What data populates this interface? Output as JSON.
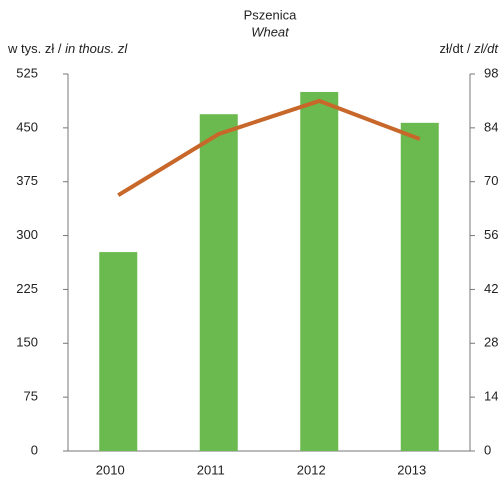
{
  "chart_data": {
    "type": "bar_line",
    "title": "Pszenica",
    "subtitle": "Wheat",
    "y_label": [
      "w tys. zł / ",
      "in thous. zl"
    ],
    "y2_label": [
      "zł/dt / ",
      "zl/dt"
    ],
    "categories": [
      "2010",
      "2011",
      "2012",
      "2013"
    ],
    "series": [
      {
        "type": "bar",
        "color": "#6aba4f",
        "values": [
          277,
          469,
          500,
          457
        ]
      },
      {
        "type": "line",
        "axis": "y2",
        "color": "#c8672a",
        "values": [
          66.5,
          82.4,
          91,
          81.1
        ]
      }
    ],
    "ylim": [
      0,
      525
    ],
    "yticks": [
      0,
      75,
      150,
      225,
      300,
      375,
      450,
      525
    ],
    "y2lim": [
      0,
      98
    ],
    "y2ticks": [
      0,
      14,
      28,
      42,
      56,
      70,
      84,
      98
    ],
    "grid": false
  }
}
